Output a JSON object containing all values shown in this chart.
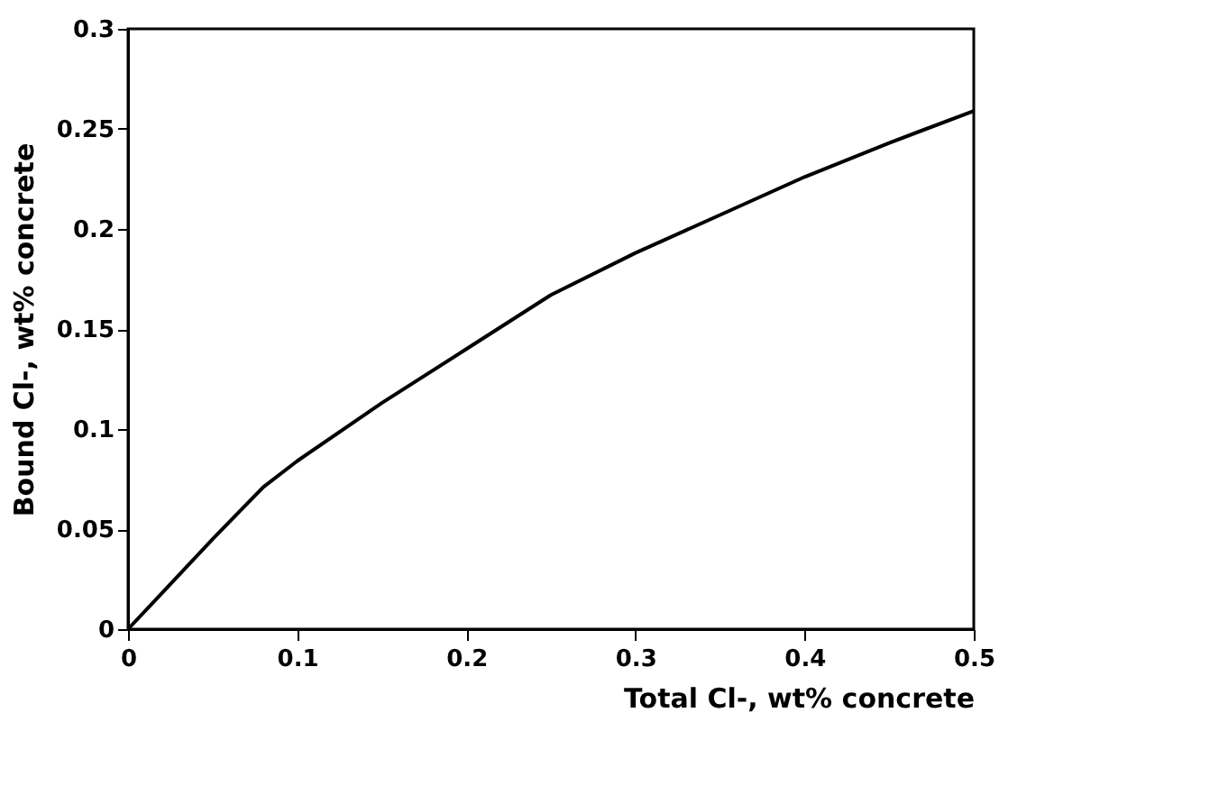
{
  "chart_data": {
    "type": "line",
    "xlabel": "Total Cl-, wt% concrete",
    "ylabel": "Bound Cl-, wt% concrete",
    "x": [
      0,
      0.02,
      0.05,
      0.08,
      0.1,
      0.15,
      0.2,
      0.25,
      0.3,
      0.35,
      0.4,
      0.45,
      0.5
    ],
    "series": [
      {
        "color": "#000000",
        "values": [
          0,
          0.018,
          0.045,
          0.071,
          0.084,
          0.113,
          0.14,
          0.167,
          0.188,
          0.207,
          0.226,
          0.243,
          0.259
        ]
      }
    ],
    "xlim": [
      0,
      0.5
    ],
    "ylim": [
      0,
      0.3
    ],
    "xticks": [
      0,
      0.1,
      0.2,
      0.3,
      0.4,
      0.5
    ],
    "yticks": [
      0,
      0.05,
      0.1,
      0.15,
      0.2,
      0.25,
      0.3
    ],
    "grid": false,
    "legend": false,
    "marker": "none",
    "line_style": "solid"
  }
}
